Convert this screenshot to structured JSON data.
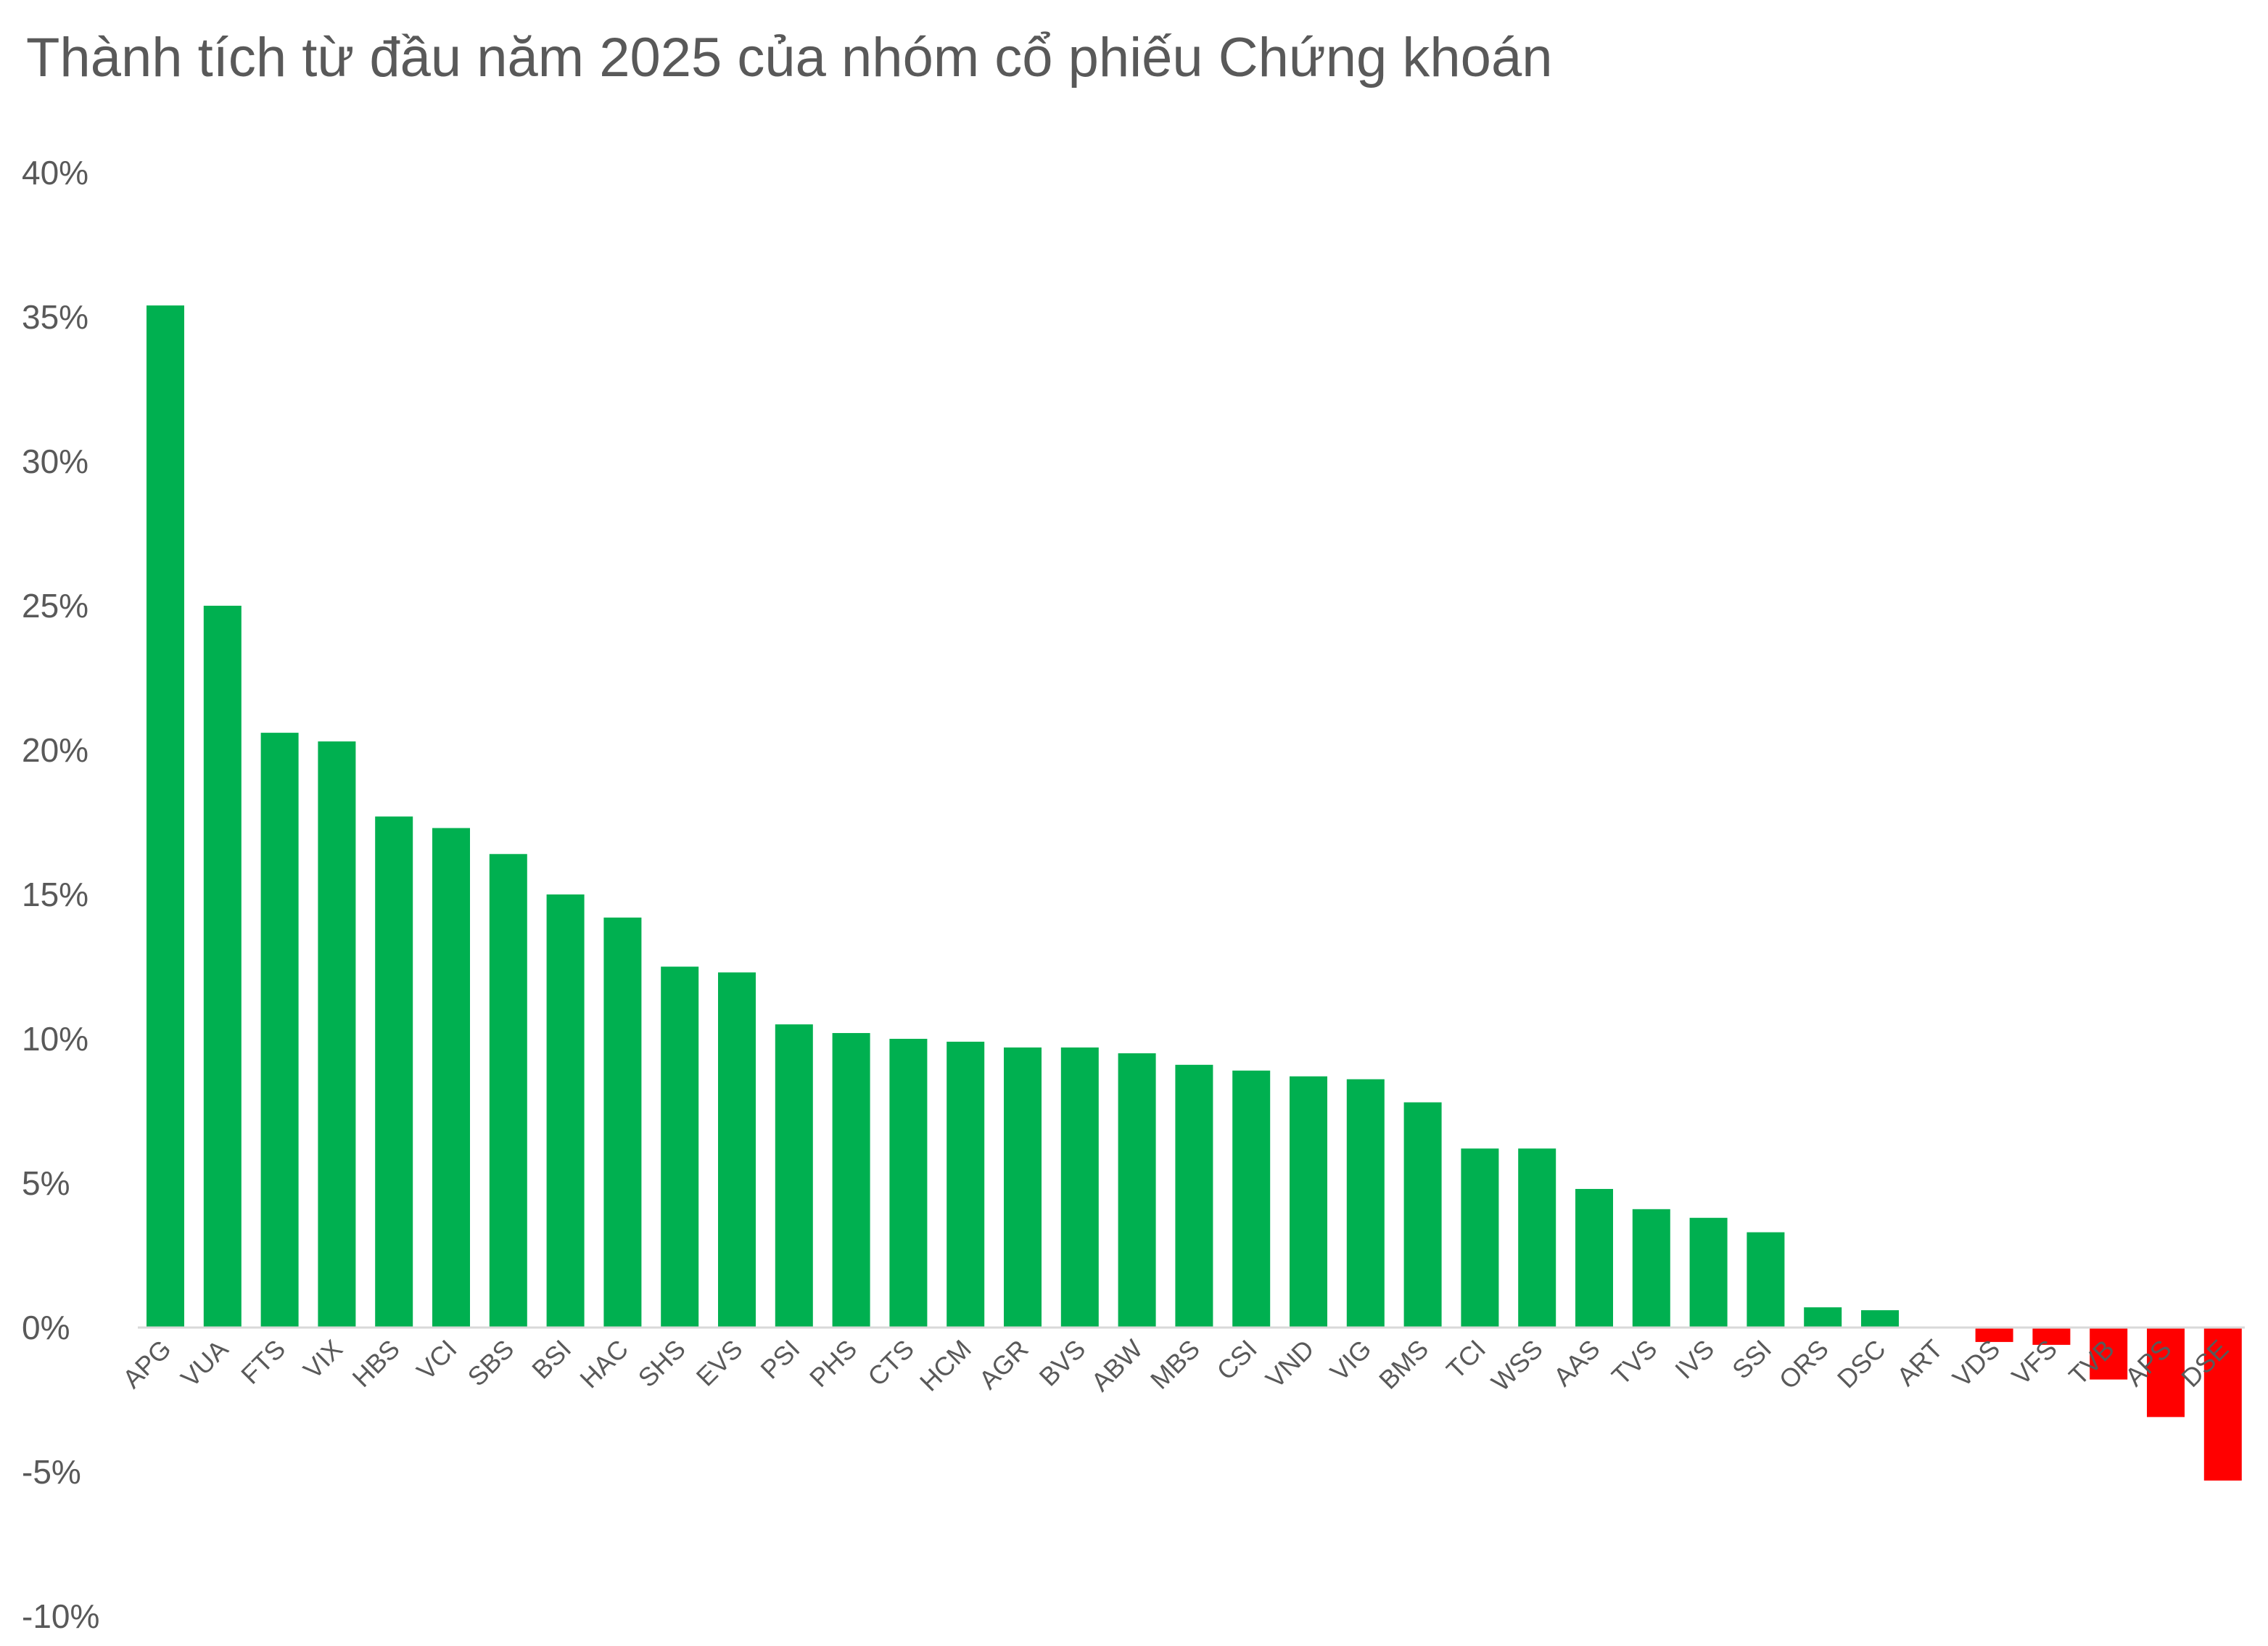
{
  "chart_data": {
    "type": "bar",
    "title": "Thành tích từ đầu năm 2025 của nhóm cổ phiếu Chứng khoán",
    "xlabel": "",
    "ylabel": "",
    "ylim": [
      -10,
      40
    ],
    "yticks": [
      40,
      35,
      30,
      25,
      20,
      15,
      10,
      5,
      0,
      -5,
      -10
    ],
    "ytick_labels": [
      "40%",
      "35%",
      "30%",
      "25%",
      "20%",
      "15%",
      "10%",
      "5%",
      "0%",
      "-5%",
      "-10%"
    ],
    "grid": false,
    "categories": [
      "APG",
      "VUA",
      "FTS",
      "VIX",
      "HBS",
      "VCI",
      "SBS",
      "BSI",
      "HAC",
      "SHS",
      "EVS",
      "PSI",
      "PHS",
      "CTS",
      "HCM",
      "AGR",
      "BVS",
      "ABW",
      "MBS",
      "CSI",
      "VND",
      "VIG",
      "BMS",
      "TCI",
      "WSS",
      "AAS",
      "TVS",
      "IVS",
      "SSI",
      "ORS",
      "DSC",
      "ART",
      "VDS",
      "VFS",
      "TVB",
      "APS",
      "DSE"
    ],
    "values": [
      35.4,
      25.0,
      20.6,
      20.3,
      17.7,
      17.3,
      16.4,
      15.0,
      14.2,
      12.5,
      12.3,
      10.5,
      10.2,
      10.0,
      9.9,
      9.7,
      9.7,
      9.5,
      9.1,
      8.9,
      8.7,
      8.6,
      7.8,
      6.2,
      6.2,
      4.8,
      4.1,
      3.8,
      3.3,
      0.7,
      0.6,
      0.0,
      -0.5,
      -0.6,
      -1.8,
      -3.1,
      -5.3
    ],
    "unit": "%",
    "colors": {
      "positive": "#00b050",
      "negative": "#ff0000",
      "axis": "#d9d9d9",
      "text": "#595959"
    }
  }
}
